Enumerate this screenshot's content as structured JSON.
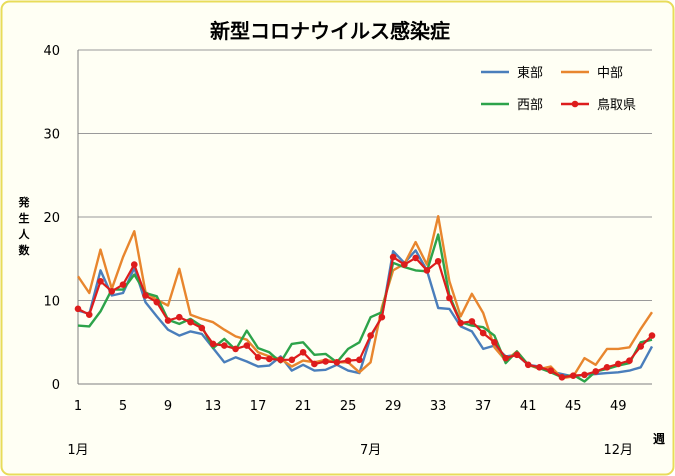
{
  "colors": {
    "border": "#e8dc5a",
    "frame_bg": "#fffff4",
    "gridline": "#9a9a9a",
    "axis": "#7f7f7f",
    "text": "#000000"
  },
  "chart_data": {
    "type": "line",
    "title": "新型コロナウイルス感染症",
    "ylabel": "発生人数",
    "xlabel": "週",
    "ylim": [
      0,
      40
    ],
    "yticks": [
      0,
      10,
      20,
      30,
      40
    ],
    "xlim": [
      1,
      52
    ],
    "xticks": [
      1,
      5,
      9,
      13,
      17,
      21,
      25,
      29,
      33,
      37,
      41,
      45,
      49
    ],
    "month_labels": [
      {
        "label": "1月",
        "week": 1
      },
      {
        "label": "7月",
        "week": 27
      },
      {
        "label": "12月",
        "week": 49
      }
    ],
    "grid": true,
    "legend_position": "top-right",
    "x": [
      1,
      2,
      3,
      4,
      5,
      6,
      7,
      8,
      9,
      10,
      11,
      12,
      13,
      14,
      15,
      16,
      17,
      18,
      19,
      20,
      21,
      22,
      23,
      24,
      25,
      26,
      27,
      28,
      29,
      30,
      31,
      32,
      33,
      34,
      35,
      36,
      37,
      38,
      39,
      40,
      41,
      42,
      43,
      44,
      45,
      46,
      47,
      48,
      49,
      50,
      51,
      52
    ],
    "series": [
      {
        "name": "東部",
        "color": "#4a7ebb",
        "markers": false,
        "values": [
          8.8,
          8.4,
          13.6,
          10.6,
          10.9,
          13.9,
          9.8,
          8.1,
          6.5,
          5.8,
          6.3,
          6.0,
          4.3,
          2.6,
          3.2,
          2.7,
          2.1,
          2.2,
          3.3,
          1.6,
          2.3,
          1.6,
          1.7,
          2.3,
          1.6,
          1.3,
          5.6,
          8.1,
          15.9,
          14.5,
          16.0,
          13.6,
          9.1,
          9.0,
          6.9,
          6.3,
          4.2,
          4.6,
          3.3,
          3.5,
          2.3,
          2.1,
          1.5,
          1.2,
          0.9,
          1.1,
          1.2,
          1.3,
          1.4,
          1.6,
          2.0,
          4.5
        ]
      },
      {
        "name": "中部",
        "color": "#e8862e",
        "markers": false,
        "values": [
          12.9,
          10.9,
          16.1,
          11.4,
          15.2,
          18.3,
          11.0,
          10.1,
          9.4,
          13.8,
          8.3,
          7.8,
          7.4,
          6.5,
          5.7,
          5.3,
          3.8,
          3.3,
          3.0,
          2.1,
          2.8,
          2.6,
          2.9,
          2.6,
          2.6,
          1.4,
          2.6,
          9.2,
          13.6,
          14.4,
          17.0,
          14.3,
          20.1,
          12.3,
          8.1,
          10.8,
          8.5,
          4.4,
          2.8,
          3.9,
          2.3,
          1.8,
          2.1,
          0.7,
          0.9,
          3.1,
          2.3,
          4.2,
          4.2,
          4.4,
          6.6,
          8.6
        ]
      },
      {
        "name": "西部",
        "color": "#2da34a",
        "markers": false,
        "values": [
          7.0,
          6.9,
          8.7,
          11.3,
          11.3,
          13.1,
          10.9,
          10.5,
          7.7,
          7.2,
          7.8,
          6.9,
          4.3,
          5.4,
          4.1,
          6.4,
          4.3,
          3.8,
          2.6,
          4.8,
          5.0,
          3.5,
          3.6,
          2.6,
          4.2,
          5.0,
          8.0,
          8.6,
          14.5,
          14.0,
          13.6,
          13.5,
          17.9,
          10.6,
          7.4,
          7.0,
          6.8,
          5.8,
          2.5,
          3.9,
          2.3,
          1.9,
          1.4,
          0.8,
          1.1,
          0.3,
          1.5,
          1.8,
          2.2,
          2.5,
          5.0,
          5.3
        ]
      },
      {
        "name": "鳥取県",
        "color": "#dd1c1c",
        "markers": true,
        "values": [
          9.0,
          8.3,
          12.3,
          11.1,
          11.9,
          14.3,
          10.6,
          9.8,
          7.6,
          8.0,
          7.4,
          6.7,
          4.8,
          4.6,
          4.2,
          4.6,
          3.2,
          3.0,
          2.9,
          2.9,
          3.8,
          2.4,
          2.7,
          2.6,
          2.8,
          2.9,
          5.8,
          8.0,
          15.2,
          14.3,
          15.1,
          13.6,
          14.7,
          10.3,
          7.3,
          7.5,
          6.1,
          5.0,
          3.1,
          3.5,
          2.3,
          2.0,
          1.6,
          0.8,
          1.0,
          1.1,
          1.5,
          2.0,
          2.4,
          2.8,
          4.5,
          5.8
        ]
      }
    ]
  }
}
